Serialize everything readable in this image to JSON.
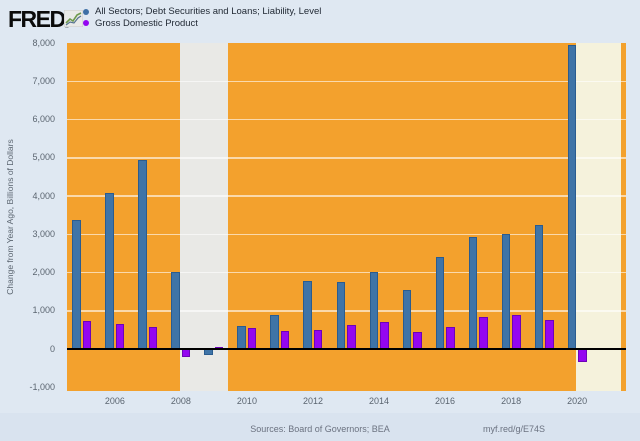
{
  "header": {
    "logo_text": "FRED",
    "logo_mark": "®",
    "legend": [
      {
        "label": "All Sectors; Debt Securities and Loans; Liability, Level",
        "color": "#3d6fa5"
      },
      {
        "label": "Gross Domestic Product",
        "color": "#9406f0"
      }
    ]
  },
  "chart_data": {
    "type": "bar",
    "title": "",
    "ylabel": "Change from Year Ago, Billions of Dollars",
    "ylim": [
      -1090,
      8000
    ],
    "x_range": [
      2004.55,
      2021.48
    ],
    "y_ticks": [
      8000,
      7000,
      6000,
      5000,
      4000,
      3000,
      2000,
      1000,
      0,
      -1000
    ],
    "y_tick_labels": [
      "8,000",
      "7,000",
      "6,000",
      "5,000",
      "4,000",
      "3,000",
      "2,000",
      "1,000",
      "0",
      "-1,000"
    ],
    "x_ticks": [
      2006,
      2008,
      2010,
      2012,
      2014,
      2016,
      2018,
      2020
    ],
    "x_tick_labels": [
      "2006",
      "2008",
      "2010",
      "2012",
      "2014",
      "2016",
      "2018",
      "2020"
    ],
    "categories": [
      2005,
      2006,
      2007,
      2008,
      2009,
      2010,
      2011,
      2012,
      2013,
      2014,
      2015,
      2016,
      2017,
      2018,
      2019,
      2020
    ],
    "series": [
      {
        "name": "All Sectors; Debt Securities and Loans; Liability, Level",
        "color": "#3f74a7",
        "border_color": "#2a5c8f",
        "values": [
          3380,
          4090,
          4950,
          2010,
          -140,
          610,
          900,
          1790,
          1770,
          2030,
          1550,
          2420,
          2920,
          3000,
          3250,
          7940
        ]
      },
      {
        "name": "Gross Domestic Product",
        "color": "#9406f0",
        "border_color": "#6d02b8",
        "values": [
          750,
          650,
          570,
          -190,
          50,
          550,
          490,
          500,
          630,
          700,
          440,
          570,
          830,
          900,
          770,
          -330
        ]
      }
    ],
    "recession_bands": [
      {
        "start": 2007.97,
        "end": 2009.42,
        "color": "#e9e9e6"
      },
      {
        "start": 2019.98,
        "end": 2021.33,
        "color": "#f5f2dc"
      }
    ],
    "plot_bg": "#f3a12d",
    "grid": true,
    "legend_position": "top-left"
  },
  "footer": {
    "sources": "Sources: Board of Governors; BEA",
    "link": "myf.red/g/E74S"
  }
}
